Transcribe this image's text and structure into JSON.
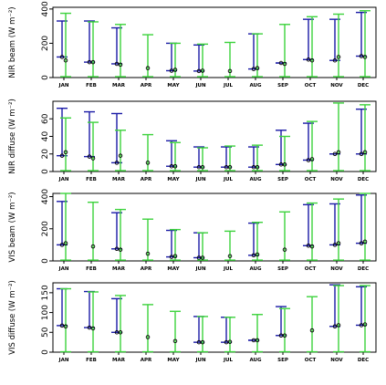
{
  "chart_data": [
    {
      "type": "errorbar",
      "ylabel": "NIR beam (W m⁻²)",
      "ylim": [
        0,
        410
      ],
      "yticks": [
        0,
        200,
        400
      ],
      "categories": [
        "JAN",
        "FEB",
        "MAR",
        "APR",
        "MAY",
        "JUN",
        "JUL",
        "AUG",
        "SEP",
        "OCT",
        "NOV",
        "DEC"
      ],
      "series": [
        {
          "color": "#3cd23c",
          "points": [
            {
              "y": 100,
              "low": 5,
              "high": 375
            },
            {
              "y": 90,
              "low": 5,
              "high": 325
            },
            {
              "y": 75,
              "low": 5,
              "high": 310
            },
            {
              "y": 55,
              "low": 5,
              "high": 250
            },
            {
              "y": 45,
              "low": 5,
              "high": 200
            },
            {
              "y": 40,
              "low": 5,
              "high": 195
            },
            {
              "y": 38,
              "low": 5,
              "high": 205
            },
            {
              "y": 55,
              "low": 5,
              "high": 255
            },
            {
              "y": 80,
              "low": 5,
              "high": 310
            },
            {
              "y": 100,
              "low": 5,
              "high": 355
            },
            {
              "y": 120,
              "low": 5,
              "high": 370
            },
            {
              "y": 120,
              "low": 5,
              "high": 390
            }
          ]
        },
        {
          "color": "#1a1aa6",
          "points": [
            {
              "y": 120,
              "low": 120,
              "high": 330
            },
            {
              "y": 90,
              "low": 90,
              "high": 330
            },
            {
              "y": 80,
              "low": 80,
              "high": 290
            },
            null,
            {
              "y": 40,
              "low": 40,
              "high": 200
            },
            {
              "y": 38,
              "low": 38,
              "high": 190
            },
            null,
            {
              "y": 50,
              "low": 50,
              "high": 255
            },
            {
              "y": 85,
              "low": 85,
              "high": 85
            },
            {
              "y": 105,
              "low": 105,
              "high": 340
            },
            {
              "y": 100,
              "low": 100,
              "high": 340
            },
            {
              "y": 125,
              "low": 125,
              "high": 380
            }
          ]
        }
      ]
    },
    {
      "type": "errorbar",
      "ylabel": "NIR diffuse (W m⁻²)",
      "ylim": [
        0,
        80
      ],
      "yticks": [
        0,
        20,
        40,
        60
      ],
      "categories": [
        "JAN",
        "FEB",
        "MAR",
        "APR",
        "MAY",
        "JUN",
        "JUL",
        "AUG",
        "SEP",
        "OCT",
        "NOV",
        "DEC"
      ],
      "series": [
        {
          "color": "#3cd23c",
          "points": [
            {
              "y": 22,
              "low": 1,
              "high": 61
            },
            {
              "y": 15,
              "low": 1,
              "high": 56
            },
            {
              "y": 18,
              "low": 1,
              "high": 47
            },
            {
              "y": 10,
              "low": 1,
              "high": 42
            },
            {
              "y": 6,
              "low": 1,
              "high": 33
            },
            {
              "y": 5,
              "low": 1,
              "high": 27
            },
            {
              "y": 5,
              "low": 1,
              "high": 29
            },
            {
              "y": 5,
              "low": 1,
              "high": 30
            },
            {
              "y": 8,
              "low": 1,
              "high": 40
            },
            {
              "y": 14,
              "low": 1,
              "high": 57
            },
            {
              "y": 22,
              "low": 1,
              "high": 78
            },
            {
              "y": 22,
              "low": 1,
              "high": 76
            }
          ]
        },
        {
          "color": "#1a1aa6",
          "points": [
            {
              "y": 18,
              "low": 18,
              "high": 72
            },
            {
              "y": 17,
              "low": 17,
              "high": 68
            },
            {
              "y": 10,
              "low": 10,
              "high": 66
            },
            null,
            {
              "y": 6,
              "low": 6,
              "high": 35
            },
            {
              "y": 5,
              "low": 5,
              "high": 28
            },
            {
              "y": 5,
              "low": 5,
              "high": 28
            },
            {
              "y": 5,
              "low": 5,
              "high": 28
            },
            {
              "y": 8,
              "low": 8,
              "high": 47
            },
            {
              "y": 13,
              "low": 13,
              "high": 55
            },
            {
              "y": 20,
              "low": 20,
              "high": 20
            },
            {
              "y": 20,
              "low": 20,
              "high": 71
            }
          ]
        }
      ]
    },
    {
      "type": "errorbar",
      "ylabel": "VIS beam (W m⁻²)",
      "ylim": [
        0,
        420
      ],
      "yticks": [
        0,
        200,
        400
      ],
      "categories": [
        "JAN",
        "FEB",
        "MAR",
        "APR",
        "MAY",
        "JUN",
        "JUL",
        "AUG",
        "SEP",
        "OCT",
        "NOV",
        "DEC"
      ],
      "series": [
        {
          "color": "#3cd23c",
          "points": [
            {
              "y": 110,
              "low": 5,
              "high": 420
            },
            {
              "y": 90,
              "low": 5,
              "high": 365
            },
            {
              "y": 70,
              "low": 5,
              "high": 320
            },
            {
              "y": 45,
              "low": 5,
              "high": 260
            },
            {
              "y": 30,
              "low": 5,
              "high": 195
            },
            {
              "y": 20,
              "low": 5,
              "high": 175
            },
            {
              "y": 30,
              "low": 5,
              "high": 185
            },
            {
              "y": 40,
              "low": 5,
              "high": 240
            },
            {
              "y": 70,
              "low": 5,
              "high": 305
            },
            {
              "y": 90,
              "low": 5,
              "high": 360
            },
            {
              "y": 110,
              "low": 5,
              "high": 385
            },
            {
              "y": 120,
              "low": 5,
              "high": 420
            }
          ]
        },
        {
          "color": "#1a1aa6",
          "points": [
            {
              "y": 100,
              "low": 100,
              "high": 370
            },
            null,
            {
              "y": 75,
              "low": 75,
              "high": 300
            },
            null,
            {
              "y": 25,
              "low": 25,
              "high": 190
            },
            {
              "y": 20,
              "low": 20,
              "high": 175
            },
            null,
            {
              "y": 35,
              "low": 35,
              "high": 235
            },
            null,
            {
              "y": 95,
              "low": 95,
              "high": 350
            },
            {
              "y": 100,
              "low": 100,
              "high": 355
            },
            {
              "y": 110,
              "low": 110,
              "high": 410
            }
          ]
        }
      ]
    },
    {
      "type": "errorbar",
      "ylabel": "VIS diffuse (W m⁻²)",
      "ylim": [
        0,
        175
      ],
      "yticks": [
        0,
        50,
        100,
        150
      ],
      "categories": [
        "JAN",
        "FEB",
        "MAR",
        "APR",
        "MAY",
        "JUN",
        "JUL",
        "AUG",
        "SEP",
        "OCT",
        "NOV",
        "DEC"
      ],
      "series": [
        {
          "color": "#3cd23c",
          "points": [
            {
              "y": 65,
              "low": 1,
              "high": 160
            },
            {
              "y": 60,
              "low": 1,
              "high": 152
            },
            {
              "y": 50,
              "low": 1,
              "high": 143
            },
            {
              "y": 38,
              "low": 1,
              "high": 120
            },
            {
              "y": 28,
              "low": 1,
              "high": 103
            },
            {
              "y": 25,
              "low": 1,
              "high": 90
            },
            {
              "y": 26,
              "low": 1,
              "high": 88
            },
            {
              "y": 30,
              "low": 1,
              "high": 95
            },
            {
              "y": 42,
              "low": 1,
              "high": 110
            },
            {
              "y": 55,
              "low": 1,
              "high": 140
            },
            {
              "y": 68,
              "low": 1,
              "high": 168
            },
            {
              "y": 70,
              "low": 1,
              "high": 168
            }
          ]
        },
        {
          "color": "#1a1aa6",
          "points": [
            {
              "y": 67,
              "low": 67,
              "high": 160
            },
            {
              "y": 62,
              "low": 62,
              "high": 153
            },
            {
              "y": 50,
              "low": 50,
              "high": 135
            },
            null,
            null,
            {
              "y": 25,
              "low": 25,
              "high": 90
            },
            {
              "y": 25,
              "low": 25,
              "high": 88
            },
            {
              "y": 30,
              "low": 30,
              "high": 30
            },
            {
              "y": 42,
              "low": 42,
              "high": 115
            },
            null,
            {
              "y": 65,
              "low": 65,
              "high": 170
            },
            {
              "y": 68,
              "low": 68,
              "high": 165
            }
          ]
        }
      ]
    }
  ]
}
